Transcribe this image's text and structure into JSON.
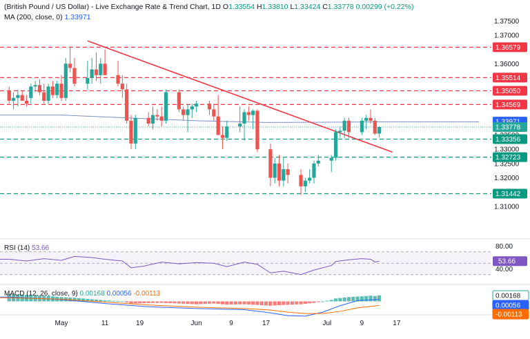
{
  "header": {
    "title": "(British Pound / US Dollar) - Live Exchange Rate & Trend Chart, 1D",
    "open_label": "O",
    "open": "1.33554",
    "high_label": "H",
    "high": "1.33810",
    "low_label": "L",
    "low": "1.33424",
    "close_label": "C",
    "close": "1.33778",
    "change": "0.00299 (+0.22%)",
    "ma_label": "MA (200, close, 0)",
    "ma_value": "1.33971"
  },
  "rsi_label": "RSI (14)",
  "rsi_value": "53.66",
  "macd_label": "MACD (12, 26, close, 9)",
  "macd_values": [
    "0.00168",
    "0.00056",
    "-0.00113"
  ],
  "colors": {
    "up": "#26a69a",
    "down": "#ef5350",
    "resistance": "#f23645",
    "support": "#089981",
    "trend": "#f23645",
    "ma": "#2962ff",
    "rsi": "#7e57c2",
    "macd": "#2962ff",
    "signal": "#ff6d00"
  },
  "chart_data": [
    {
      "type": "candlestick",
      "y_ticks": [
        "1.37500",
        "1.37000",
        "1.36000",
        "1.35000",
        "1.34500",
        "1.33500",
        "1.33000",
        "1.32500",
        "1.32000",
        "1.31000"
      ],
      "ylim": [
        1.305,
        1.3775
      ],
      "x_tick_labels": [
        "May",
        "11",
        "19",
        "Jun",
        "9",
        "17",
        "Jul",
        "9",
        "17"
      ],
      "x_tick_days": [
        0,
        10,
        18,
        31,
        39,
        47,
        61,
        69,
        77
      ],
      "horizontal_levels": [
        {
          "label": "1.36579",
          "value": 1.36579,
          "kind": "resistance"
        },
        {
          "label": "1.35514",
          "value": 1.35514,
          "kind": "resistance"
        },
        {
          "label": "1.35050",
          "value": 1.3505,
          "kind": "resistance"
        },
        {
          "label": "1.34569",
          "value": 1.34569,
          "kind": "resistance"
        },
        {
          "label": "1.33356",
          "value": 1.33356,
          "kind": "support"
        },
        {
          "label": "1.32723",
          "value": 1.32723,
          "kind": "support"
        },
        {
          "label": "1.31442",
          "value": 1.31442,
          "kind": "support"
        }
      ],
      "price_labels": [
        {
          "label": "1.33971",
          "value": 1.33971,
          "kind": "ma"
        },
        {
          "label": "1.33778",
          "value": 1.33778,
          "kind": "last"
        }
      ],
      "trendline": [
        {
          "day": 6,
          "price": 1.368
        },
        {
          "day": 76,
          "price": 1.329
        }
      ],
      "ma_series": [
        [
          -12,
          1.342
        ],
        [
          0,
          1.342
        ],
        [
          15,
          1.341
        ],
        [
          31,
          1.34
        ],
        [
          47,
          1.3394
        ],
        [
          61,
          1.3395
        ],
        [
          74,
          1.3396
        ]
      ],
      "candles": [
        {
          "day": -12,
          "o": 1.3505,
          "h": 1.352,
          "l": 1.346,
          "c": 1.347
        },
        {
          "day": -11,
          "o": 1.347,
          "h": 1.35,
          "l": 1.344,
          "c": 1.348
        },
        {
          "day": -10,
          "o": 1.348,
          "h": 1.351,
          "l": 1.345,
          "c": 1.349
        },
        {
          "day": -9,
          "o": 1.349,
          "h": 1.3505,
          "l": 1.347,
          "c": 1.347
        },
        {
          "day": -8,
          "o": 1.347,
          "h": 1.349,
          "l": 1.345,
          "c": 1.346
        },
        {
          "day": -7,
          "o": 1.348,
          "h": 1.353,
          "l": 1.346,
          "c": 1.352
        },
        {
          "day": -6,
          "o": 1.352,
          "h": 1.354,
          "l": 1.35,
          "c": 1.3525
        },
        {
          "day": -5,
          "o": 1.3525,
          "h": 1.3545,
          "l": 1.349,
          "c": 1.35
        },
        {
          "day": -4,
          "o": 1.35,
          "h": 1.353,
          "l": 1.346,
          "c": 1.347
        },
        {
          "day": -3,
          "o": 1.347,
          "h": 1.353,
          "l": 1.346,
          "c": 1.352
        },
        {
          "day": -2,
          "o": 1.352,
          "h": 1.354,
          "l": 1.348,
          "c": 1.349
        },
        {
          "day": -1,
          "o": 1.349,
          "h": 1.354,
          "l": 1.348,
          "c": 1.353
        },
        {
          "day": 0,
          "o": 1.353,
          "h": 1.356,
          "l": 1.347,
          "c": 1.348
        },
        {
          "day": 1,
          "o": 1.348,
          "h": 1.362,
          "l": 1.347,
          "c": 1.36
        },
        {
          "day": 2,
          "o": 1.36,
          "h": 1.366,
          "l": 1.357,
          "c": 1.3585
        },
        {
          "day": 3,
          "o": 1.3585,
          "h": 1.362,
          "l": 1.352,
          "c": 1.353
        },
        {
          "day": 6,
          "o": 1.353,
          "h": 1.361,
          "l": 1.351,
          "c": 1.355
        },
        {
          "day": 7,
          "o": 1.355,
          "h": 1.362,
          "l": 1.353,
          "c": 1.358
        },
        {
          "day": 8,
          "o": 1.358,
          "h": 1.364,
          "l": 1.354,
          "c": 1.356
        },
        {
          "day": 9,
          "o": 1.356,
          "h": 1.362,
          "l": 1.353,
          "c": 1.36
        },
        {
          "day": 10,
          "o": 1.36,
          "h": 1.365,
          "l": 1.356,
          "c": 1.356
        },
        {
          "day": 13,
          "o": 1.356,
          "h": 1.361,
          "l": 1.352,
          "c": 1.353
        },
        {
          "day": 14,
          "o": 1.353,
          "h": 1.356,
          "l": 1.348,
          "c": 1.351
        },
        {
          "day": 15,
          "o": 1.351,
          "h": 1.353,
          "l": 1.339,
          "c": 1.34
        },
        {
          "day": 16,
          "o": 1.34,
          "h": 1.342,
          "l": 1.33,
          "c": 1.332
        },
        {
          "day": 17,
          "o": 1.332,
          "h": 1.342,
          "l": 1.33,
          "c": 1.341
        },
        {
          "day": 20,
          "o": 1.341,
          "h": 1.343,
          "l": 1.338,
          "c": 1.339
        },
        {
          "day": 21,
          "o": 1.339,
          "h": 1.345,
          "l": 1.337,
          "c": 1.342
        },
        {
          "day": 22,
          "o": 1.342,
          "h": 1.344,
          "l": 1.34,
          "c": 1.3415
        },
        {
          "day": 23,
          "o": 1.3415,
          "h": 1.345,
          "l": 1.338,
          "c": 1.34
        },
        {
          "day": 24,
          "o": 1.34,
          "h": 1.351,
          "l": 1.339,
          "c": 1.35
        },
        {
          "day": 27,
          "o": 1.35,
          "h": 1.351,
          "l": 1.343,
          "c": 1.344
        },
        {
          "day": 28,
          "o": 1.344,
          "h": 1.345,
          "l": 1.34,
          "c": 1.342
        },
        {
          "day": 29,
          "o": 1.342,
          "h": 1.346,
          "l": 1.336,
          "c": 1.344
        },
        {
          "day": 30,
          "o": 1.344,
          "h": 1.346,
          "l": 1.341,
          "c": 1.345
        },
        {
          "day": 31,
          "o": 1.345,
          "h": 1.347,
          "l": 1.343,
          "c": 1.346
        },
        {
          "day": 34,
          "o": 1.346,
          "h": 1.347,
          "l": 1.342,
          "c": 1.344
        },
        {
          "day": 35,
          "o": 1.344,
          "h": 1.346,
          "l": 1.34,
          "c": 1.3415
        },
        {
          "day": 36,
          "o": 1.3415,
          "h": 1.349,
          "l": 1.335,
          "c": 1.335
        },
        {
          "day": 37,
          "o": 1.335,
          "h": 1.338,
          "l": 1.33,
          "c": 1.334
        },
        {
          "day": 38,
          "o": 1.334,
          "h": 1.34,
          "l": 1.333,
          "c": 1.338
        },
        {
          "day": 41,
          "o": 1.338,
          "h": 1.345,
          "l": 1.336,
          "c": 1.339
        },
        {
          "day": 42,
          "o": 1.339,
          "h": 1.344,
          "l": 1.333,
          "c": 1.343
        },
        {
          "day": 43,
          "o": 1.343,
          "h": 1.345,
          "l": 1.34,
          "c": 1.342
        },
        {
          "day": 44,
          "o": 1.342,
          "h": 1.344,
          "l": 1.337,
          "c": 1.3435
        },
        {
          "day": 45,
          "o": 1.3435,
          "h": 1.344,
          "l": 1.329,
          "c": 1.33
        },
        {
          "day": 48,
          "o": 1.33,
          "h": 1.332,
          "l": 1.317,
          "c": 1.32
        },
        {
          "day": 49,
          "o": 1.32,
          "h": 1.327,
          "l": 1.318,
          "c": 1.325
        },
        {
          "day": 50,
          "o": 1.325,
          "h": 1.328,
          "l": 1.317,
          "c": 1.319
        },
        {
          "day": 51,
          "o": 1.319,
          "h": 1.327,
          "l": 1.317,
          "c": 1.323
        },
        {
          "day": 52,
          "o": 1.323,
          "h": 1.325,
          "l": 1.318,
          "c": 1.321
        },
        {
          "day": 55,
          "o": 1.321,
          "h": 1.323,
          "l": 1.314,
          "c": 1.317
        },
        {
          "day": 56,
          "o": 1.317,
          "h": 1.32,
          "l": 1.315,
          "c": 1.319
        },
        {
          "day": 57,
          "o": 1.319,
          "h": 1.323,
          "l": 1.318,
          "c": 1.32
        },
        {
          "day": 58,
          "o": 1.32,
          "h": 1.326,
          "l": 1.318,
          "c": 1.325
        },
        {
          "day": 59,
          "o": 1.325,
          "h": 1.328,
          "l": 1.324,
          "c": 1.326
        },
        {
          "day": 62,
          "o": 1.326,
          "h": 1.328,
          "l": 1.322,
          "c": 1.327
        },
        {
          "day": 63,
          "o": 1.327,
          "h": 1.337,
          "l": 1.326,
          "c": 1.336
        },
        {
          "day": 64,
          "o": 1.336,
          "h": 1.338,
          "l": 1.334,
          "c": 1.3365
        },
        {
          "day": 65,
          "o": 1.3365,
          "h": 1.341,
          "l": 1.334,
          "c": 1.34
        },
        {
          "day": 66,
          "o": 1.34,
          "h": 1.341,
          "l": 1.334,
          "c": 1.336
        },
        {
          "day": 69,
          "o": 1.336,
          "h": 1.341,
          "l": 1.335,
          "c": 1.34
        },
        {
          "day": 70,
          "o": 1.34,
          "h": 1.342,
          "l": 1.337,
          "c": 1.341
        },
        {
          "day": 71,
          "o": 1.341,
          "h": 1.344,
          "l": 1.339,
          "c": 1.34
        },
        {
          "day": 72,
          "o": 1.34,
          "h": 1.341,
          "l": 1.335,
          "c": 1.3355
        },
        {
          "day": 73,
          "o": 1.3355,
          "h": 1.3381,
          "l": 1.3342,
          "c": 1.3378
        }
      ]
    },
    {
      "type": "line",
      "title": "RSI (14)",
      "y_ticks": [
        "80.00",
        "40.00"
      ],
      "ylim": [
        30,
        90
      ],
      "band": [
        30,
        70
      ],
      "series": [
        {
          "name": "RSI (14)",
          "points": [
            [
              -12,
              57
            ],
            [
              -8,
              54
            ],
            [
              -4,
              58
            ],
            [
              0,
              55
            ],
            [
              3,
              62
            ],
            [
              7,
              60
            ],
            [
              10,
              57
            ],
            [
              14,
              54
            ],
            [
              16,
              42
            ],
            [
              19,
              45
            ],
            [
              23,
              52
            ],
            [
              27,
              49
            ],
            [
              31,
              51
            ],
            [
              35,
              50
            ],
            [
              38,
              44
            ],
            [
              42,
              52
            ],
            [
              45,
              48
            ],
            [
              48,
              33
            ],
            [
              51,
              36
            ],
            [
              55,
              30
            ],
            [
              58,
              38
            ],
            [
              62,
              46
            ],
            [
              63,
              53
            ],
            [
              66,
              56
            ],
            [
              69,
              58
            ],
            [
              71,
              57
            ],
            [
              72,
              52
            ],
            [
              73,
              53.66
            ]
          ]
        }
      ]
    },
    {
      "type": "bar",
      "title": "MACD (12, 26, close, 9)",
      "ylim": [
        -0.0045,
        0.003
      ],
      "histogram": [
        [
          -12,
          0.002
        ],
        [
          -8,
          0.0018
        ],
        [
          -4,
          0.0016
        ],
        [
          0,
          0.0012
        ],
        [
          3,
          0.001
        ],
        [
          7,
          0.0006
        ],
        [
          10,
          0.0003
        ],
        [
          14,
          0.0
        ],
        [
          16,
          -0.0006
        ],
        [
          19,
          -0.0005
        ],
        [
          23,
          -0.0004
        ],
        [
          27,
          -0.0006
        ],
        [
          31,
          -0.0008
        ],
        [
          35,
          -0.0006
        ],
        [
          38,
          -0.0009
        ],
        [
          42,
          -0.0008
        ],
        [
          45,
          -0.001
        ],
        [
          48,
          -0.0012
        ],
        [
          51,
          -0.001
        ],
        [
          55,
          -0.0008
        ],
        [
          58,
          -0.0004
        ],
        [
          62,
          0.0004
        ],
        [
          63,
          0.0008
        ],
        [
          66,
          0.0012
        ],
        [
          69,
          0.0014
        ],
        [
          71,
          0.0016
        ],
        [
          72,
          0.0015
        ],
        [
          73,
          0.00168
        ]
      ],
      "series": [
        {
          "name": "MACD",
          "points": [
            [
              -12,
              0.0012
            ],
            [
              0,
              0.0005
            ],
            [
              10,
              -0.0006
            ],
            [
              20,
              -0.0015
            ],
            [
              31,
              -0.002
            ],
            [
              42,
              -0.0023
            ],
            [
              48,
              -0.0032
            ],
            [
              52,
              -0.004
            ],
            [
              56,
              -0.0041
            ],
            [
              60,
              -0.003
            ],
            [
              64,
              -0.0012
            ],
            [
              68,
              0.0002
            ],
            [
              73,
              0.00056
            ]
          ]
        },
        {
          "name": "Signal",
          "points": [
            [
              -12,
              0.001
            ],
            [
              0,
              0.0006
            ],
            [
              10,
              -0.0002
            ],
            [
              20,
              -0.001
            ],
            [
              31,
              -0.0016
            ],
            [
              42,
              -0.002
            ],
            [
              48,
              -0.0024
            ],
            [
              52,
              -0.003
            ],
            [
              56,
              -0.0034
            ],
            [
              60,
              -0.0034
            ],
            [
              64,
              -0.0028
            ],
            [
              68,
              -0.0018
            ],
            [
              73,
              -0.00113
            ]
          ]
        }
      ]
    }
  ]
}
